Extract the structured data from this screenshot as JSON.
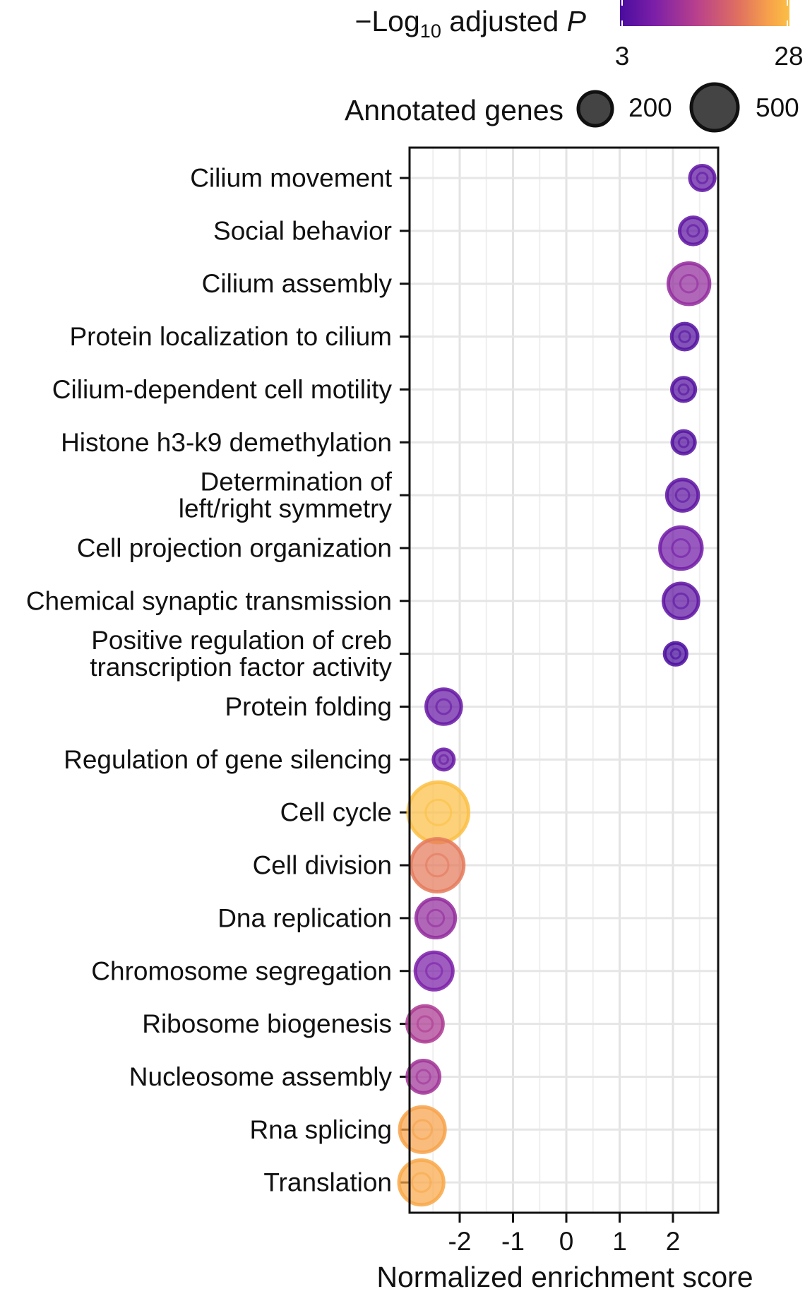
{
  "chart_data": {
    "type": "scatter",
    "xlabel": "Normalized enrichment score",
    "xlim": [
      -2.95,
      2.8
    ],
    "xticks": [
      -2,
      -1,
      0,
      1,
      2
    ],
    "x_tick_labels": [
      "-2",
      "-1",
      "0",
      "1",
      "2"
    ],
    "grid": true,
    "color_legend": {
      "prefix": "−Log",
      "subscript": "10",
      "suffix": " adjusted ",
      "italic": "P",
      "min": 3,
      "max": 28,
      "min_label": "3",
      "max_label": "28",
      "colorscale": [
        "#4a0c9e",
        "#7b1fa8",
        "#b8408c",
        "#e07060",
        "#f7a24a",
        "#fbbf45"
      ]
    },
    "size_legend": {
      "title": "Annotated genes",
      "entries": [
        {
          "value": 200,
          "label": "200"
        },
        {
          "value": 500,
          "label": "500"
        }
      ]
    },
    "categories": [
      [
        "Cilium movement"
      ],
      [
        "Social behavior"
      ],
      [
        "Cilium assembly"
      ],
      [
        "Protein localization to cilium"
      ],
      [
        "Cilium-dependent cell motility"
      ],
      [
        "Histone h3-k9 demethylation"
      ],
      [
        "Determination of",
        "left/right symmetry"
      ],
      [
        "Cell projection organization"
      ],
      [
        "Chemical synaptic transmission"
      ],
      [
        "Positive regulation of creb",
        "transcription factor activity"
      ],
      [
        "Protein folding"
      ],
      [
        "Regulation of gene silencing"
      ],
      [
        "Cell cycle"
      ],
      [
        "Cell division"
      ],
      [
        "Dna replication"
      ],
      [
        "Chromosome segregation"
      ],
      [
        "Ribosome biogenesis"
      ],
      [
        "Nucleosome assembly"
      ],
      [
        "Rna splicing"
      ],
      [
        "Translation"
      ]
    ],
    "points": [
      {
        "nes": 2.55,
        "neg_log10_padj": 5,
        "genes": 80
      },
      {
        "nes": 2.38,
        "neg_log10_padj": 5,
        "genes": 100
      },
      {
        "nes": 2.3,
        "neg_log10_padj": 10,
        "genes": 260
      },
      {
        "nes": 2.22,
        "neg_log10_padj": 4,
        "genes": 90
      },
      {
        "nes": 2.2,
        "neg_log10_padj": 4,
        "genes": 70
      },
      {
        "nes": 2.2,
        "neg_log10_padj": 4,
        "genes": 65
      },
      {
        "nes": 2.18,
        "neg_log10_padj": 5,
        "genes": 140
      },
      {
        "nes": 2.15,
        "neg_log10_padj": 7,
        "genes": 270
      },
      {
        "nes": 2.15,
        "neg_log10_padj": 5,
        "genes": 180
      },
      {
        "nes": 2.05,
        "neg_log10_padj": 3,
        "genes": 60
      },
      {
        "nes": -2.3,
        "neg_log10_padj": 6,
        "genes": 180
      },
      {
        "nes": -2.3,
        "neg_log10_padj": 6,
        "genes": 50
      },
      {
        "nes": -2.4,
        "neg_log10_padj": 28,
        "genes": 600
      },
      {
        "nes": -2.42,
        "neg_log10_padj": 19,
        "genes": 450
      },
      {
        "nes": -2.45,
        "neg_log10_padj": 10,
        "genes": 230
      },
      {
        "nes": -2.48,
        "neg_log10_padj": 8,
        "genes": 210
      },
      {
        "nes": -2.65,
        "neg_log10_padj": 12,
        "genes": 190
      },
      {
        "nes": -2.68,
        "neg_log10_padj": 11,
        "genes": 150
      },
      {
        "nes": -2.7,
        "neg_log10_padj": 23,
        "genes": 320
      },
      {
        "nes": -2.72,
        "neg_log10_padj": 24,
        "genes": 310
      }
    ]
  }
}
